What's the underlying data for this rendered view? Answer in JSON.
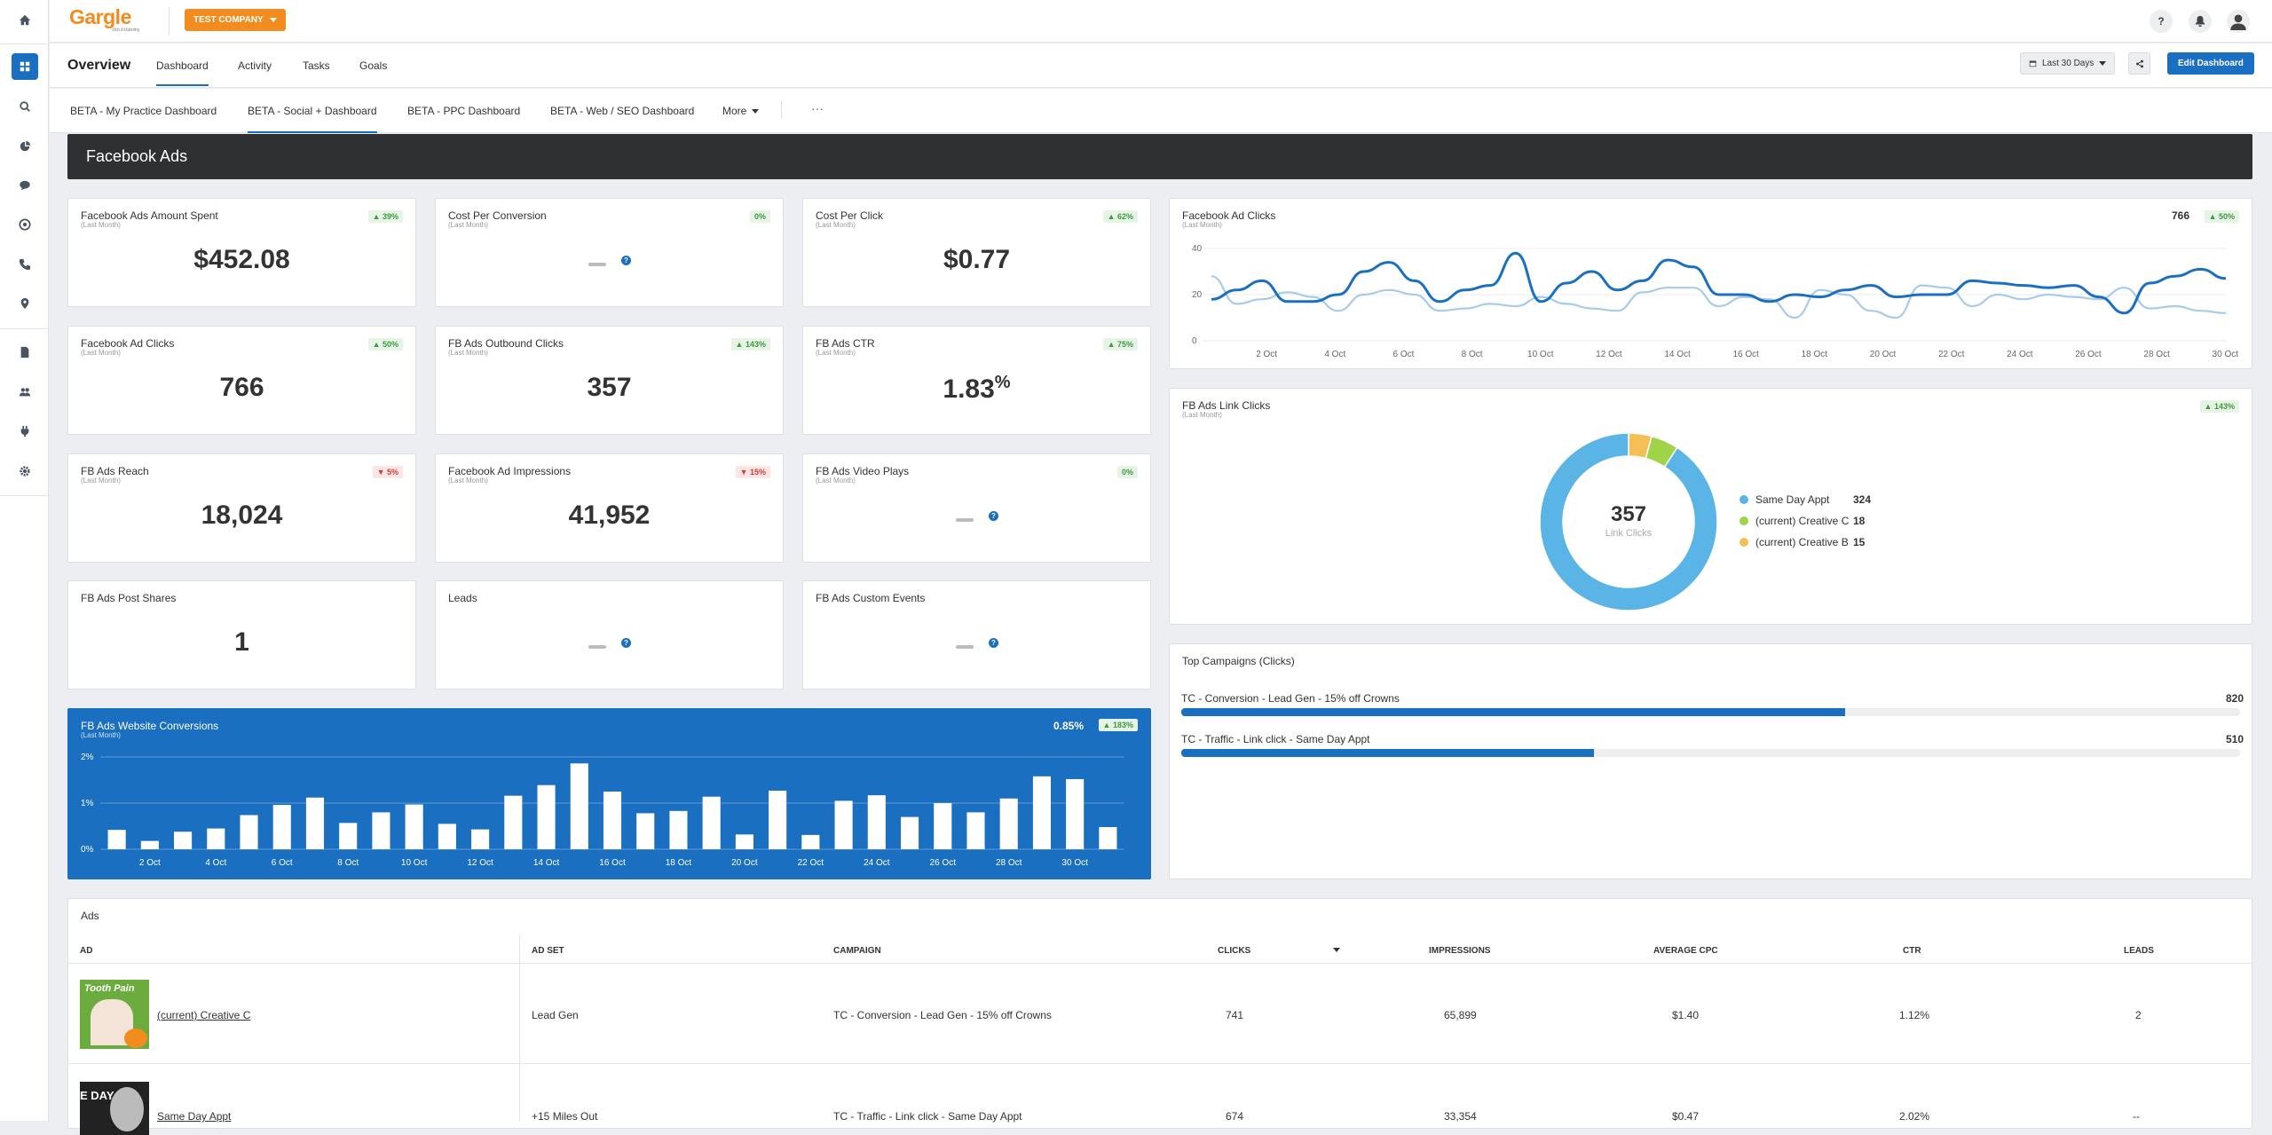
{
  "brand": {
    "name": "Gargle",
    "tagline": "Web & Marketing",
    "accent": "#f38c1f",
    "primary": "#1a6fc1"
  },
  "topbar": {
    "company_label": "TEST COMPANY",
    "help_label": "?"
  },
  "sidebar": {
    "icons": [
      "home-icon",
      "dashboard-icon",
      "search-icon",
      "pie-chart-icon",
      "chat-icon",
      "reviews-icon",
      "phone-icon",
      "location-pin-icon",
      "document-icon",
      "users-icon",
      "plug-icon",
      "settings-icon"
    ]
  },
  "header": {
    "title": "Overview",
    "tabs": [
      "Dashboard",
      "Activity",
      "Tasks",
      "Goals"
    ],
    "range_label": "Last 30 Days",
    "edit_label": "Edit Dashboard"
  },
  "dashboard_tabs": {
    "items": [
      "BETA - My Practice Dashboard",
      "BETA - Social + Dashboard",
      "BETA - PPC Dashboard",
      "BETA - Web / SEO Dashboard"
    ],
    "more_label": "More",
    "overflow_label": "···"
  },
  "section": {
    "title": "Facebook Ads"
  },
  "metrics": [
    {
      "title": "Facebook Ads Amount Spent",
      "sub": "(Last Month)",
      "value": "$452.08",
      "change": "39%",
      "dir": "up"
    },
    {
      "title": "Cost Per Conversion",
      "sub": "(Last Month)",
      "value": "",
      "change": "0%",
      "dir": "up"
    },
    {
      "title": "Cost Per Click",
      "sub": "(Last Month)",
      "value": "$0.77",
      "change": "62%",
      "dir": "up"
    },
    {
      "title": "Facebook Ad Clicks",
      "sub": "(Last Month)",
      "value": "766",
      "change": "50%",
      "dir": "up"
    },
    {
      "title": "FB Ads Outbound Clicks",
      "sub": "(Last Month)",
      "value": "357",
      "change": "143%",
      "dir": "up"
    },
    {
      "title": "FB Ads CTR",
      "sub": "(Last Month)",
      "value": "1.83",
      "unit": "%",
      "change": "75%",
      "dir": "up"
    },
    {
      "title": "FB Ads Reach",
      "sub": "(Last Month)",
      "value": "18,024",
      "change": "5%",
      "dir": "down"
    },
    {
      "title": "Facebook Ad Impressions",
      "sub": "(Last Month)",
      "value": "41,952",
      "change": "15%",
      "dir": "down"
    },
    {
      "title": "FB Ads Video Plays",
      "sub": "(Last Month)",
      "value": "",
      "change": "0%",
      "dir": "up"
    },
    {
      "title": "FB Ads Post Shares",
      "sub": "",
      "value": "1",
      "change": "",
      "dir": "none"
    },
    {
      "title": "Leads",
      "sub": "",
      "value": "",
      "change": "",
      "dir": "none"
    },
    {
      "title": "FB Ads Custom Events",
      "sub": "",
      "value": "",
      "change": "",
      "dir": "none"
    }
  ],
  "conversions_card": {
    "title": "FB Ads Website Conversions",
    "sub": "(Last Month)",
    "rate": "0.85%",
    "change": "183%"
  },
  "clicks_card": {
    "title": "Facebook Ad Clicks",
    "sub": "(Last Month)",
    "total": "766",
    "change": "50%"
  },
  "link_clicks_card": {
    "title": "FB Ads Link Clicks",
    "sub": "(Last Month)",
    "change": "143%",
    "center_value": "357",
    "center_label": "Link Clicks"
  },
  "campaigns_card": {
    "title": "Top Campaigns (Clicks)",
    "items": [
      {
        "name": "TC - Conversion - Lead Gen - 15% off Crowns",
        "value": "820",
        "ratio": 0.627
      },
      {
        "name": "TC - Traffic - Link click - Same Day Appt",
        "value": "510",
        "ratio": 0.39
      }
    ]
  },
  "ads_table": {
    "title": "Ads",
    "columns": [
      "AD",
      "AD SET",
      "CAMPAIGN",
      "CLICKS",
      "IMPRESSIONS",
      "AVERAGE CPC",
      "CTR",
      "LEADS"
    ],
    "rows": [
      {
        "ad": "(current) Creative C",
        "thumb_text": "Tooth Pain",
        "ad_set": "Lead Gen",
        "campaign": "TC - Conversion - Lead Gen - 15% off Crowns",
        "clicks": "741",
        "impressions": "65,899",
        "cpc": "$1.40",
        "ctr": "1.12%",
        "leads": "2"
      },
      {
        "ad": "Same Day Appt",
        "thumb_text": "E DAY",
        "ad_set": "+15 Miles Out",
        "campaign": "TC - Traffic - Link click - Same Day Appt",
        "clicks": "674",
        "impressions": "33,354",
        "cpc": "$0.47",
        "ctr": "2.02%",
        "leads": "--"
      }
    ]
  },
  "chart_data": [
    {
      "type": "line",
      "title": "Facebook Ad Clicks",
      "x_ticks": [
        "2 Oct",
        "4 Oct",
        "6 Oct",
        "8 Oct",
        "10 Oct",
        "12 Oct",
        "14 Oct",
        "16 Oct",
        "18 Oct",
        "20 Oct",
        "22 Oct",
        "24 Oct",
        "26 Oct",
        "28 Oct",
        "30 Oct"
      ],
      "ylim": [
        0,
        40
      ],
      "y_ticks": [
        "0",
        "20",
        "40"
      ],
      "series": [
        {
          "values": [
            18,
            22,
            26,
            17,
            17,
            20,
            30,
            34,
            26,
            17,
            22,
            24,
            38,
            17,
            25,
            30,
            22,
            26,
            35,
            32,
            20,
            20,
            17,
            20,
            19,
            22,
            24,
            19,
            20,
            20,
            26,
            25,
            24,
            23,
            24,
            19,
            12,
            25,
            28,
            31,
            27
          ]
        },
        {
          "values": [
            28,
            16,
            18,
            21,
            19,
            13,
            20,
            22,
            20,
            13,
            14,
            16,
            15,
            19,
            16,
            14,
            13,
            21,
            23,
            23,
            15,
            19,
            18,
            10,
            22,
            20,
            13,
            10,
            24,
            23,
            15,
            20,
            18,
            20,
            19,
            18,
            23,
            14,
            15,
            13,
            12
          ]
        }
      ],
      "colors": [
        "#1a6fc1",
        "#a7cbe8"
      ]
    },
    {
      "type": "pie",
      "title": "FB Ads Link Clicks",
      "categories": [
        "Same Day Appt",
        "(current) Creative C",
        "(current) Creative B"
      ],
      "values": [
        324,
        18,
        15
      ],
      "colors": [
        "#5ab4e5",
        "#9fd449",
        "#f6bf55"
      ]
    },
    {
      "type": "bar",
      "title": "FB Ads Website Conversions",
      "x_ticks": [
        "2 Oct",
        "4 Oct",
        "6 Oct",
        "8 Oct",
        "10 Oct",
        "12 Oct",
        "14 Oct",
        "16 Oct",
        "18 Oct",
        "20 Oct",
        "22 Oct",
        "24 Oct",
        "26 Oct",
        "28 Oct",
        "30 Oct"
      ],
      "y_ticks": [
        "0%",
        "1%",
        "2%"
      ],
      "ylim": [
        0,
        2
      ],
      "values": [
        0.42,
        0.18,
        0.38,
        0.45,
        0.74,
        0.96,
        1.12,
        0.57,
        0.8,
        0.97,
        0.55,
        0.43,
        1.16,
        1.39,
        1.86,
        1.25,
        0.78,
        0.83,
        1.14,
        0.32,
        1.27,
        0.31,
        1.05,
        1.17,
        0.7,
        1.0,
        0.8,
        1.1,
        1.58,
        1.52,
        0.48
      ]
    },
    {
      "type": "bar",
      "title": "Top Campaigns (Clicks)",
      "categories": [
        "TC - Conversion - Lead Gen - 15% off Crowns",
        "TC - Traffic - Link click - Same Day Appt"
      ],
      "values": [
        820,
        510
      ]
    }
  ]
}
